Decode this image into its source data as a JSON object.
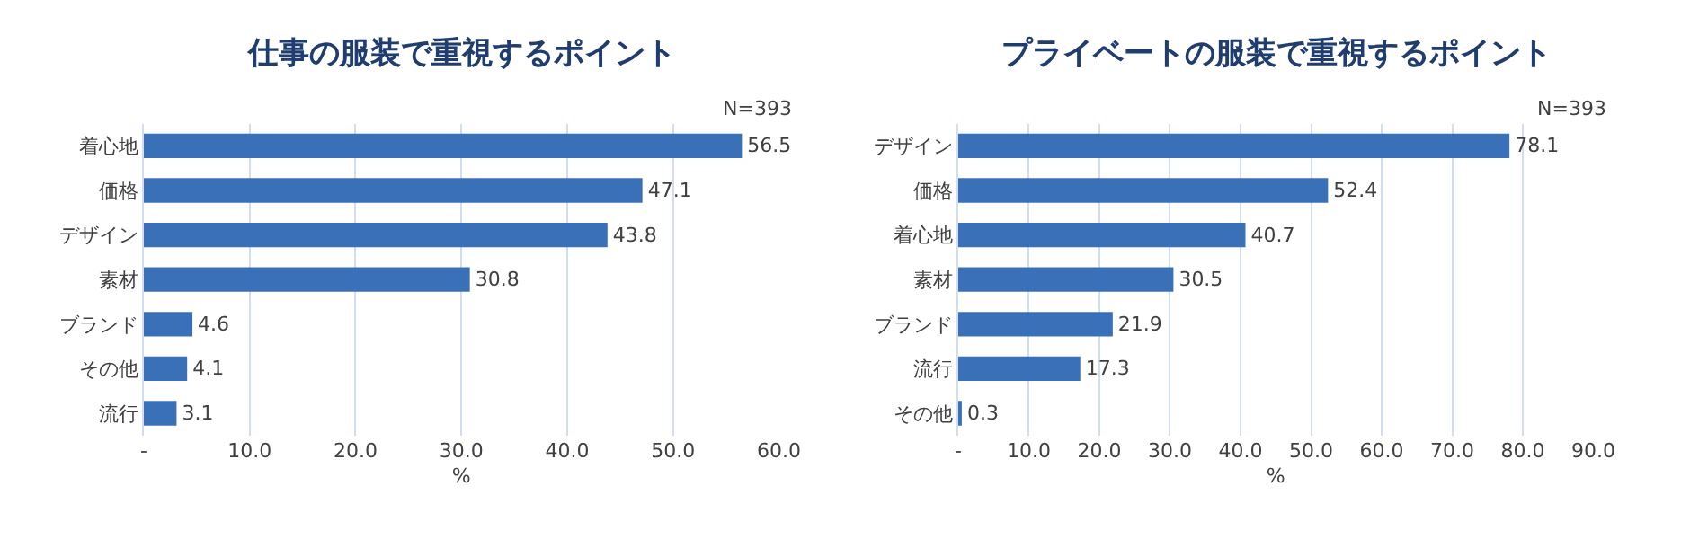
{
  "chart_data": [
    {
      "type": "bar",
      "orientation": "horizontal",
      "title": "仕事の服装で重視するポイント",
      "xlabel": "%",
      "annotations": [
        "N=393"
      ],
      "categories": [
        "着心地",
        "価格",
        "デザイン",
        "素材",
        "ブランド",
        "その他",
        "流行"
      ],
      "values": [
        56.5,
        47.1,
        43.8,
        30.8,
        4.6,
        4.1,
        3.1
      ],
      "color": "#3a70b8",
      "data_labels": true,
      "grid": "x",
      "xlim": [
        0,
        60
      ],
      "xticks": [
        {
          "value": 0,
          "label": "-"
        },
        {
          "value": 10,
          "label": "10.0"
        },
        {
          "value": 20,
          "label": "20.0"
        },
        {
          "value": 30,
          "label": "30.0"
        },
        {
          "value": 40,
          "label": "40.0"
        },
        {
          "value": 50,
          "label": "50.0"
        },
        {
          "value": 60,
          "label": "60.0"
        }
      ]
    },
    {
      "type": "bar",
      "orientation": "horizontal",
      "title": "プライベートの服装で重視するポイント",
      "xlabel": "%",
      "annotations": [
        "N=393"
      ],
      "categories": [
        "デザイン",
        "価格",
        "着心地",
        "素材",
        "ブランド",
        "流行",
        "その他"
      ],
      "values": [
        78.1,
        52.4,
        40.7,
        30.5,
        21.9,
        17.3,
        0.3
      ],
      "color": "#3a70b8",
      "data_labels": true,
      "grid": "x",
      "xlim": [
        0,
        90
      ],
      "xticks": [
        {
          "value": 0,
          "label": "-"
        },
        {
          "value": 10,
          "label": "10.0"
        },
        {
          "value": 20,
          "label": "20.0"
        },
        {
          "value": 30,
          "label": "30.0"
        },
        {
          "value": 40,
          "label": "40.0"
        },
        {
          "value": 50,
          "label": "50.0"
        },
        {
          "value": 60,
          "label": "60.0"
        },
        {
          "value": 70,
          "label": "70.0"
        },
        {
          "value": 80,
          "label": "80.0"
        },
        {
          "value": 90,
          "label": "90.0"
        }
      ]
    }
  ]
}
